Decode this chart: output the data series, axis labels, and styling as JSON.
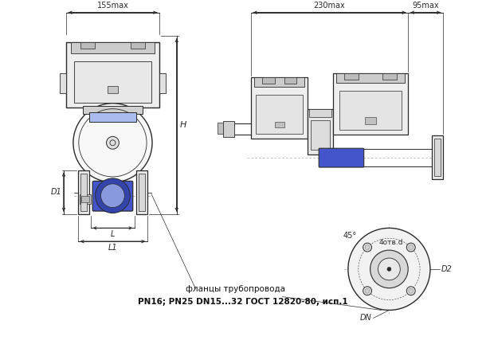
{
  "bg_color": "#ffffff",
  "lc": "#2a2a2a",
  "blue_dark": "#3344aa",
  "blue_mid": "#4455cc",
  "blue_light": "#8899dd",
  "gray_dark": "#888888",
  "gray_mid": "#cccccc",
  "gray_light": "#eeeeee",
  "dim_color": "#2a2a2a",
  "label_155": "155max",
  "label_230": "230max",
  "label_95": "95max",
  "label_H": "H",
  "label_D1": "D1",
  "label_L": "L",
  "label_L1": "L1",
  "label_D2": "D2",
  "label_DN": "DN",
  "label_45": "45°",
  "label_4otv": "4отв.d",
  "text_flanges": "фланцы трубопровода",
  "text_pn": "PN16; PN25 DN15...32 ГОСТ 12820-80, исп.1"
}
